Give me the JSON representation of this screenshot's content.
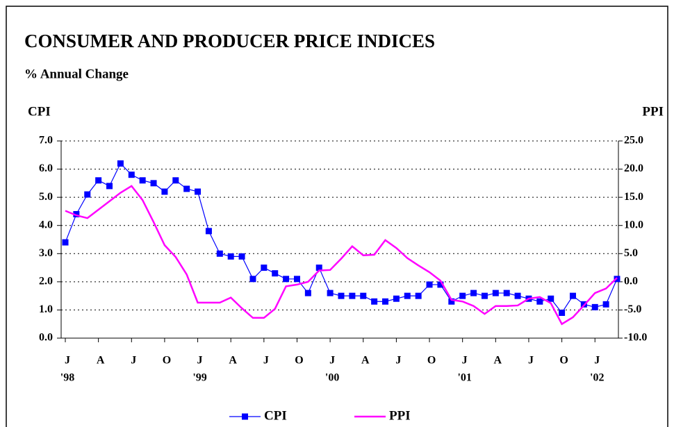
{
  "chart_data": {
    "type": "line",
    "title": "CONSUMER AND PRODUCER PRICE INDICES",
    "subtitle": "% Annual Change",
    "y_label": "CPI",
    "y2_label": "PPI",
    "categories": [
      "J",
      null,
      null,
      "A",
      null,
      null,
      "J",
      null,
      null,
      "O",
      null,
      null,
      "J",
      null,
      null,
      "A",
      null,
      null,
      "J",
      null,
      null,
      "O",
      null,
      null,
      "J",
      null,
      null,
      "A",
      null,
      null,
      "J",
      null,
      null,
      "O",
      null,
      null,
      "J",
      null,
      null,
      "A",
      null,
      null,
      "J",
      null,
      null,
      "O",
      null,
      null,
      "J",
      null,
      null
    ],
    "category_years": [
      "'98",
      null,
      null,
      null,
      null,
      null,
      null,
      null,
      null,
      null,
      null,
      null,
      "'99",
      null,
      null,
      null,
      null,
      null,
      null,
      null,
      null,
      null,
      null,
      null,
      "'00",
      null,
      null,
      null,
      null,
      null,
      null,
      null,
      null,
      null,
      null,
      null,
      "'01",
      null,
      null,
      null,
      null,
      null,
      null,
      null,
      null,
      null,
      null,
      null,
      "'02",
      null,
      null
    ],
    "series": [
      {
        "name": "CPI",
        "color": "#0000ff",
        "marker": "square",
        "axis": "y",
        "values": [
          3.4,
          4.4,
          5.1,
          5.6,
          5.4,
          6.2,
          5.8,
          5.6,
          5.5,
          5.2,
          5.6,
          5.3,
          5.2,
          3.8,
          3.0,
          2.9,
          2.9,
          2.1,
          2.5,
          2.3,
          2.1,
          2.1,
          1.6,
          2.5,
          1.6,
          1.5,
          1.5,
          1.5,
          1.3,
          1.3,
          1.4,
          1.5,
          1.5,
          1.9,
          1.9,
          1.3,
          1.5,
          1.6,
          1.5,
          1.6,
          1.6,
          1.5,
          1.4,
          1.3,
          1.4,
          0.9,
          1.5,
          1.2,
          1.1,
          1.2,
          2.1
        ]
      },
      {
        "name": "PPI",
        "color": "#ff00ff",
        "axis": "y2",
        "values": [
          12.6,
          11.8,
          11.3,
          12.8,
          14.3,
          15.8,
          17.0,
          14.5,
          10.6,
          6.5,
          4.4,
          1.3,
          -3.7,
          -3.7,
          -3.7,
          -2.8,
          -4.7,
          -6.4,
          -6.4,
          -4.8,
          -0.8,
          -0.5,
          0.0,
          2.0,
          2.1,
          4.1,
          6.3,
          4.7,
          4.8,
          7.4,
          6.0,
          4.2,
          2.9,
          1.7,
          0.2,
          -3.2,
          -3.5,
          -4.3,
          -5.7,
          -4.3,
          -4.3,
          -4.2,
          -3.0,
          -2.7,
          -3.8,
          -7.5,
          -6.3,
          -4.2,
          -2.0,
          -1.2,
          0.7
        ]
      }
    ],
    "ylim": [
      0,
      7
    ],
    "yticks": [
      {
        "value": 0,
        "label": "0.0"
      },
      {
        "value": 1,
        "label": "1.0"
      },
      {
        "value": 2,
        "label": "2.0"
      },
      {
        "value": 3,
        "label": "3.0"
      },
      {
        "value": 4,
        "label": "4.0"
      },
      {
        "value": 5,
        "label": "5.0"
      },
      {
        "value": 6,
        "label": "6.0"
      },
      {
        "value": 7,
        "label": "7.0"
      }
    ],
    "y2lim": [
      -10,
      25
    ],
    "y2ticks": [
      {
        "value": -10,
        "label": "-10.0"
      },
      {
        "value": -5,
        "label": "-5.0"
      },
      {
        "value": 0,
        "label": "0.0"
      },
      {
        "value": 5,
        "label": "5.0"
      },
      {
        "value": 10,
        "label": "10.0"
      },
      {
        "value": 15,
        "label": "15.0"
      },
      {
        "value": 20,
        "label": "20.0"
      },
      {
        "value": 25,
        "label": "25.0"
      }
    ],
    "grid": true,
    "legend": "bottom"
  }
}
